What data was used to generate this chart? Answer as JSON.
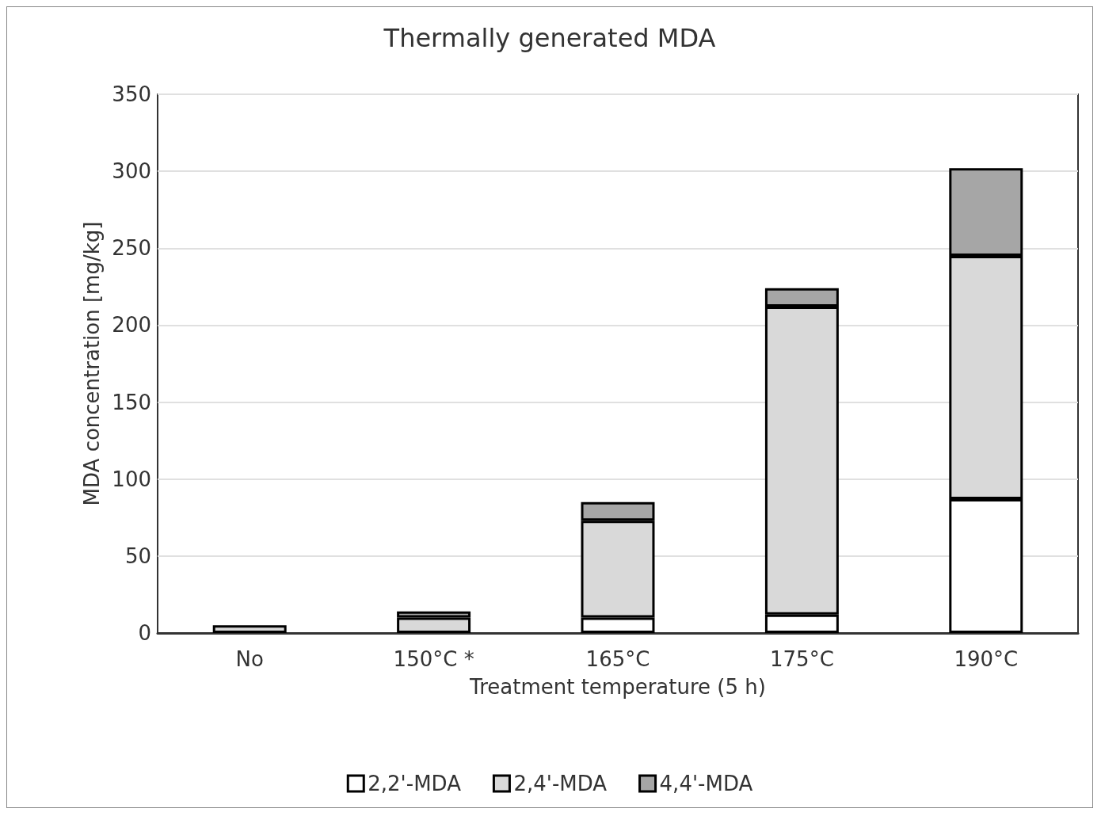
{
  "chart_data": {
    "type": "bar",
    "title": "Thermally generated MDA",
    "xlabel": "Treatment temperature (5 h)",
    "ylabel": "MDA concentration [mg/kg]",
    "categories": [
      "No",
      "150°C *",
      "165°C",
      "175°C",
      "190°C"
    ],
    "series": [
      {
        "name": "2,2'-MDA",
        "color": "#ffffff",
        "values": [
          null,
          null,
          10,
          12,
          87
        ]
      },
      {
        "name": "2,4'-MDA",
        "color": "#d9d9d9",
        "values": [
          5,
          10,
          63,
          200,
          158
        ]
      },
      {
        "name": "4,4'-MDA",
        "color": "#a6a6a6",
        "values": [
          null,
          4,
          12,
          12,
          57
        ]
      }
    ],
    "stacked": true,
    "ylim": [
      0,
      350
    ],
    "yticks": [
      0,
      50,
      100,
      150,
      200,
      250,
      300,
      350
    ],
    "grid": "y",
    "legend": "bottom"
  }
}
